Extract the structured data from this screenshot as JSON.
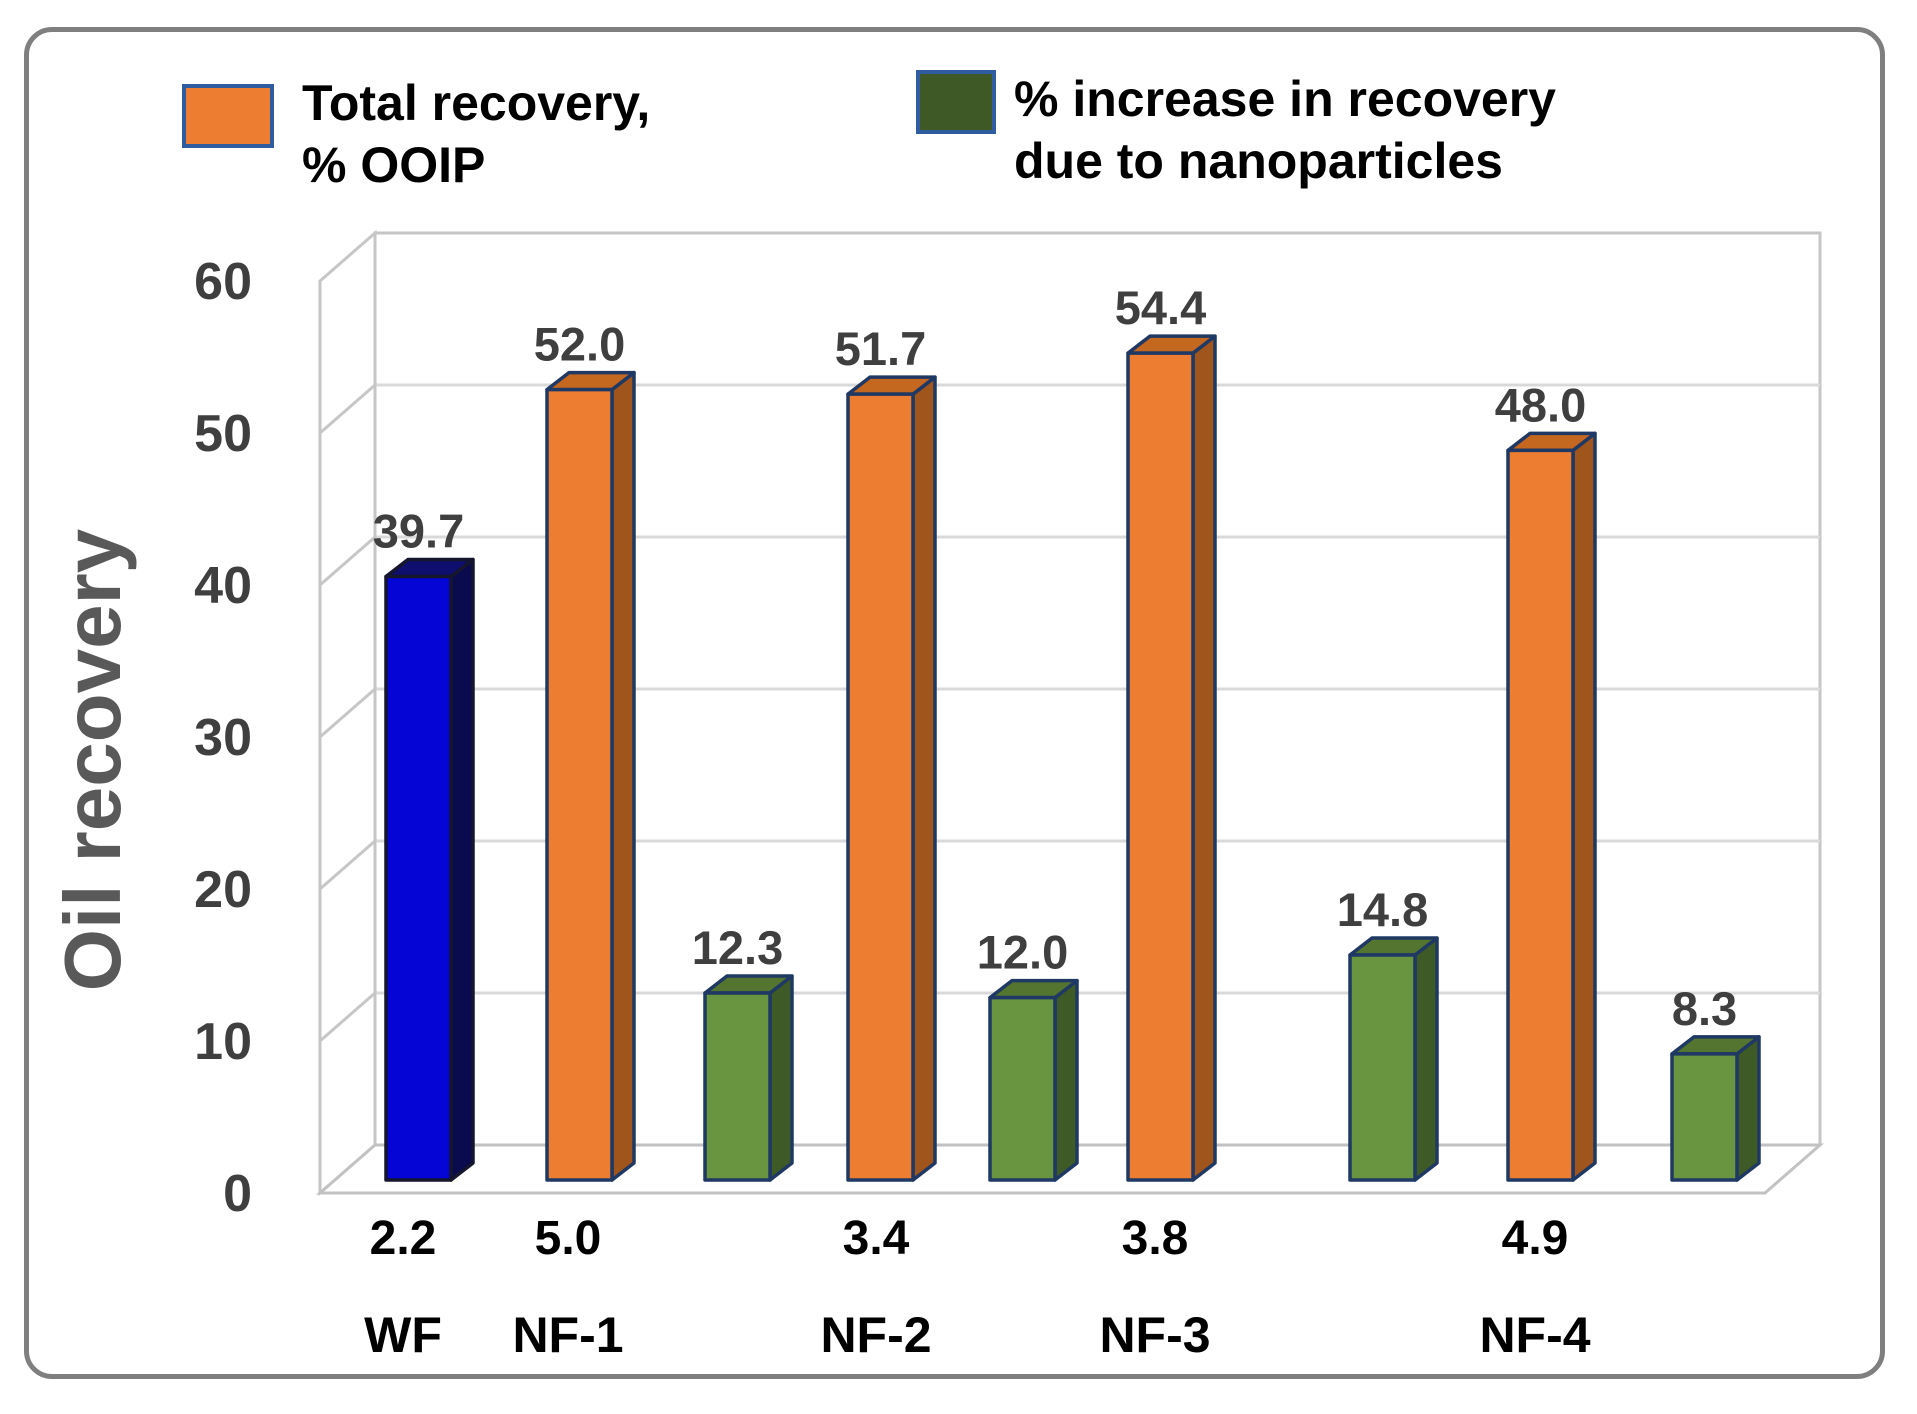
{
  "figure": {
    "background": "#FFFFFF",
    "border_color": "#7F7F7F"
  },
  "legend": {
    "items": [
      {
        "lines": [
          "Total recovery,",
          "% OOIP"
        ],
        "swatch_fill": "#ED7D31",
        "swatch_stroke": "#2E5C9E"
      },
      {
        "lines": [
          "% increase in recovery",
          "due to nanoparticles"
        ],
        "swatch_fill": "#3E5826",
        "swatch_stroke": "#2E5C9E"
      }
    ]
  },
  "chart_data": {
    "type": "bar",
    "projection": "3d",
    "title": "",
    "ylabel": "Oil recovery",
    "xlabel": "",
    "ylim": [
      0,
      60
    ],
    "yticks": [
      0,
      10,
      20,
      30,
      40,
      50,
      60
    ],
    "grid": true,
    "legend_position": "top",
    "categories": [
      "WF",
      "NF-1",
      "NF-2",
      "NF-3",
      "NF-4"
    ],
    "category_sublabels": [
      "2.2",
      "5.0",
      "3.4",
      "3.8",
      "4.9"
    ],
    "series": [
      {
        "name": "Total recovery, % OOIP",
        "values": [
          39.7,
          52.0,
          51.7,
          54.4,
          48.0
        ],
        "styles": [
          "blue",
          "orange",
          "orange",
          "orange",
          "orange"
        ]
      },
      {
        "name": "% increase in recovery due to nanoparticles",
        "values": [
          null,
          12.3,
          12.0,
          14.8,
          8.3
        ],
        "styles": [
          null,
          "green",
          "green",
          "green",
          "green"
        ]
      }
    ],
    "value_label_decimals": 1
  },
  "palette": {
    "orange": {
      "front": "#ED7D31",
      "side": "#A0551C",
      "top": "#C4671F",
      "stroke": "#1F3864"
    },
    "green": {
      "front": "#699440",
      "side": "#3E5A26",
      "top": "#537530",
      "stroke": "#1F3864"
    },
    "blue": {
      "front": "#0505D6",
      "side": "#0A0A4E",
      "top": "#0E0E6E",
      "stroke": "#15152E"
    }
  },
  "style_colors": {
    "gridline": "#D9D9D9",
    "wall_stroke": "#C6C6C6",
    "floor_stroke": "#C2C2C2",
    "tick_text": "#3F3F3F",
    "value_text": "#3F3F3F",
    "category_text": "#000000",
    "axis_title_text": "#595959"
  }
}
